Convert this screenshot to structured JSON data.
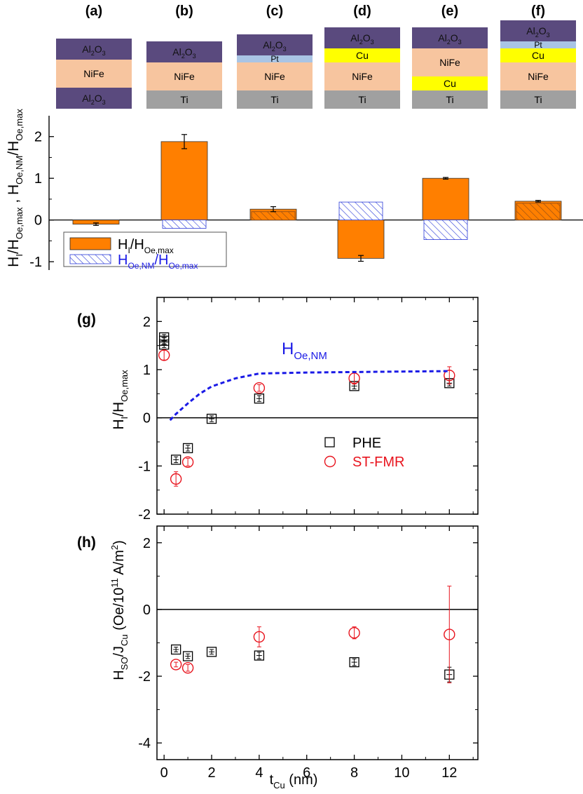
{
  "panels": [
    {
      "letter": "(a)",
      "layers": [
        {
          "name": "Al₂O₃",
          "type": "al2o3"
        },
        {
          "name": "NiFe",
          "type": "nife"
        },
        {
          "name": "Al₂O₃",
          "type": "al2o3"
        }
      ]
    },
    {
      "letter": "(b)",
      "layers": [
        {
          "name": "Al₂O₃",
          "type": "al2o3"
        },
        {
          "name": "NiFe",
          "type": "nife"
        },
        {
          "name": "Ti",
          "type": "ti"
        }
      ]
    },
    {
      "letter": "(c)",
      "layers": [
        {
          "name": "Al₂O₃",
          "type": "al2o3"
        },
        {
          "name": "Pt",
          "type": "pt"
        },
        {
          "name": "NiFe",
          "type": "nife"
        },
        {
          "name": "Ti",
          "type": "ti"
        }
      ]
    },
    {
      "letter": "(d)",
      "layers": [
        {
          "name": "Al₂O₃",
          "type": "al2o3"
        },
        {
          "name": "Cu",
          "type": "cu"
        },
        {
          "name": "NiFe",
          "type": "nife"
        },
        {
          "name": "Ti",
          "type": "ti"
        }
      ]
    },
    {
      "letter": "(e)",
      "layers": [
        {
          "name": "Al₂O₃",
          "type": "al2o3"
        },
        {
          "name": "NiFe",
          "type": "nife"
        },
        {
          "name": "Cu",
          "type": "cu"
        },
        {
          "name": "Ti",
          "type": "ti"
        }
      ]
    },
    {
      "letter": "(f)",
      "layers": [
        {
          "name": "Al₂O₃",
          "type": "al2o3"
        },
        {
          "name": "Pt",
          "type": "pt"
        },
        {
          "name": "Cu",
          "type": "cu"
        },
        {
          "name": "NiFe",
          "type": "nife"
        },
        {
          "name": "Ti",
          "type": "ti"
        }
      ]
    }
  ],
  "colors": {
    "al2o3": "#5a4a7e",
    "nife": "#f7c59f",
    "ti": "#a0a0a0",
    "pt": "#a9c4e4",
    "cu": "#ffff00",
    "orange": "#ff7f00",
    "hatch": "#2a3ad8",
    "phe": "#000000",
    "stfmr": "#e8141e",
    "model": "#1a1ae6"
  },
  "chart_data": [
    {
      "type": "bar",
      "categories": [
        "(a)",
        "(b)",
        "(c)",
        "(d)",
        "(e)",
        "(f)"
      ],
      "series": [
        {
          "name": "H_I/H_Oe,max",
          "values": [
            -0.1,
            1.88,
            0.26,
            -0.92,
            1.0,
            0.45
          ],
          "errors": [
            0.03,
            0.17,
            0.06,
            0.07,
            0.02,
            0.02
          ]
        },
        {
          "name": "H_Oe,NM/H_Oe,max",
          "values": [
            0,
            -0.2,
            0.2,
            0.43,
            -0.47,
            0.4
          ]
        }
      ],
      "ylabel": "H_I/H_Oe,max , H_Oe,NM/H_Oe,max",
      "ylim": [
        -1.2,
        2.5
      ],
      "yticks": [
        -1,
        0,
        1,
        2
      ],
      "legend": "bottom-left"
    },
    {
      "type": "scatter",
      "panel_label": "(g)",
      "ylabel": "H_I/H_Oe,max",
      "xlim": [
        -0.3,
        13.2
      ],
      "ylim": [
        -2,
        2.5
      ],
      "yticks": [
        -2,
        -1,
        0,
        1,
        2
      ],
      "series": [
        {
          "name": "PHE",
          "points": [
            [
              0,
              1.67
            ],
            [
              0,
              1.6
            ],
            [
              0,
              1.52
            ],
            [
              0.5,
              -0.87
            ],
            [
              1,
              -0.63
            ],
            [
              2,
              -0.02
            ],
            [
              4,
              0.4
            ],
            [
              8,
              0.66
            ],
            [
              12,
              0.72
            ]
          ]
        },
        {
          "name": "ST-FMR",
          "points": [
            [
              0,
              1.3
            ],
            [
              0.5,
              -1.27
            ],
            [
              1,
              -0.92
            ],
            [
              4,
              0.62
            ],
            [
              8,
              0.82
            ],
            [
              12,
              0.88
            ]
          ],
          "errors": [
            0.1,
            0.15,
            0.08,
            0.07,
            0.12,
            0.18
          ]
        },
        {
          "name": "H_Oe,NM",
          "points": [
            [
              0.25,
              -0.05
            ],
            [
              0.5,
              0.08
            ],
            [
              1,
              0.3
            ],
            [
              1.5,
              0.5
            ],
            [
              2,
              0.65
            ],
            [
              3,
              0.82
            ],
            [
              4,
              0.92
            ],
            [
              6,
              0.94
            ],
            [
              8,
              0.95
            ],
            [
              10,
              0.96
            ],
            [
              12,
              0.97
            ]
          ]
        }
      ],
      "curve_label": "H_Oe,NM"
    },
    {
      "type": "scatter",
      "panel_label": "(h)",
      "xlabel": "t_Cu (nm)",
      "ylabel": "H_SO/J_Cu (Oe/10^11 A/m^2)",
      "xlim": [
        -0.3,
        13.2
      ],
      "ylim": [
        -4.5,
        2.5
      ],
      "xticks": [
        0,
        2,
        4,
        6,
        8,
        10,
        12
      ],
      "yticks": [
        -4,
        -2,
        0,
        2
      ],
      "series": [
        {
          "name": "PHE",
          "points": [
            [
              0.5,
              -1.2
            ],
            [
              1,
              -1.4
            ],
            [
              2,
              -1.27
            ],
            [
              4,
              -1.38
            ],
            [
              8,
              -1.58
            ],
            [
              12,
              -1.95
            ]
          ],
          "errors": [
            0.07,
            0.07,
            0.07,
            0.1,
            0.1,
            0.22
          ]
        },
        {
          "name": "ST-FMR",
          "points": [
            [
              0.5,
              -1.65
            ],
            [
              1,
              -1.75
            ],
            [
              4,
              -0.82
            ],
            [
              8,
              -0.7
            ],
            [
              12,
              -0.75
            ]
          ],
          "errors": [
            0.07,
            0.1,
            0.3,
            0.18,
            1.45
          ]
        }
      ]
    }
  ]
}
